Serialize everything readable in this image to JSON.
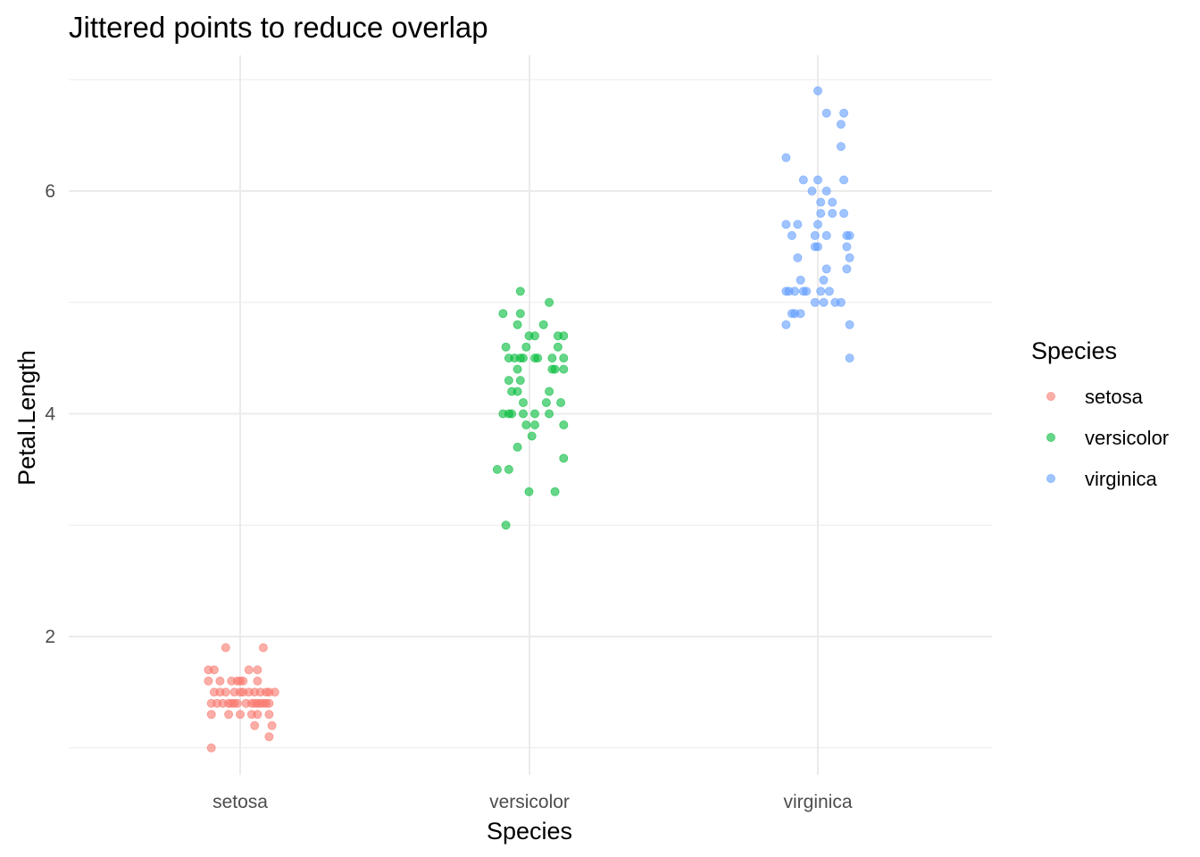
{
  "chart_data": {
    "type": "scatter",
    "title": "Jittered points to reduce overlap",
    "xlabel": "Species",
    "ylabel": "Petal.Length",
    "categories": [
      "setosa",
      "versicolor",
      "virginica"
    ],
    "ylim": [
      0.9,
      7.0
    ],
    "y_ticks": [
      2,
      4,
      6
    ],
    "y_minor_ticks": [
      1,
      3,
      5,
      7
    ],
    "grid": true,
    "point_alpha": 0.6,
    "legend": {
      "title": "Species",
      "placement": "right",
      "entries": [
        "setosa",
        "versicolor",
        "virginica"
      ]
    },
    "colors": {
      "setosa": "#F8766D",
      "versicolor": "#00BA38",
      "virginica": "#619CFF"
    },
    "series": [
      {
        "name": "setosa",
        "points": [
          [
            0.95,
            1.9
          ],
          [
            1.08,
            1.9
          ],
          [
            0.89,
            1.7
          ],
          [
            0.91,
            1.7
          ],
          [
            1.03,
            1.7
          ],
          [
            1.06,
            1.7
          ],
          [
            0.89,
            1.6
          ],
          [
            0.93,
            1.6
          ],
          [
            0.97,
            1.6
          ],
          [
            0.99,
            1.6
          ],
          [
            1.0,
            1.6
          ],
          [
            1.06,
            1.6
          ],
          [
            0.91,
            1.5
          ],
          [
            0.95,
            1.5
          ],
          [
            0.98,
            1.5
          ],
          [
            1.01,
            1.5
          ],
          [
            1.05,
            1.5
          ],
          [
            1.09,
            1.5
          ],
          [
            1.1,
            1.5
          ],
          [
            1.12,
            1.5
          ],
          [
            0.92,
            1.4
          ],
          [
            0.94,
            1.4
          ],
          [
            0.96,
            1.4
          ],
          [
            0.99,
            1.4
          ],
          [
            1.02,
            1.4
          ],
          [
            1.05,
            1.4
          ],
          [
            1.07,
            1.4
          ],
          [
            1.09,
            1.4
          ],
          [
            0.9,
            1.4
          ],
          [
            0.98,
            1.4
          ],
          [
            1.04,
            1.4
          ],
          [
            1.08,
            1.4
          ],
          [
            1.1,
            1.4
          ],
          [
            1.06,
            1.4
          ],
          [
            0.93,
            1.5
          ],
          [
            1.0,
            1.5
          ],
          [
            1.03,
            1.5
          ],
          [
            1.07,
            1.5
          ],
          [
            0.9,
            1.3
          ],
          [
            0.96,
            1.3
          ],
          [
            1.0,
            1.3
          ],
          [
            1.04,
            1.3
          ],
          [
            1.06,
            1.3
          ],
          [
            1.1,
            1.3
          ],
          [
            1.05,
            1.2
          ],
          [
            1.11,
            1.2
          ],
          [
            1.1,
            1.1
          ],
          [
            0.9,
            1.0
          ],
          [
            0.97,
            1.4
          ],
          [
            1.01,
            1.6
          ]
        ]
      },
      {
        "name": "versicolor",
        "points": [
          [
            1.97,
            5.1
          ],
          [
            2.07,
            5.0
          ],
          [
            1.91,
            4.9
          ],
          [
            1.97,
            4.9
          ],
          [
            1.96,
            4.8
          ],
          [
            2.05,
            4.8
          ],
          [
            2.0,
            4.7
          ],
          [
            2.02,
            4.7
          ],
          [
            2.1,
            4.7
          ],
          [
            2.12,
            4.7
          ],
          [
            1.92,
            4.6
          ],
          [
            1.99,
            4.6
          ],
          [
            1.93,
            4.5
          ],
          [
            1.95,
            4.5
          ],
          [
            1.97,
            4.5
          ],
          [
            1.98,
            4.5
          ],
          [
            2.02,
            4.5
          ],
          [
            2.03,
            4.5
          ],
          [
            2.08,
            4.5
          ],
          [
            2.12,
            4.5
          ],
          [
            2.12,
            4.4
          ],
          [
            2.09,
            4.4
          ],
          [
            1.96,
            4.4
          ],
          [
            1.93,
            4.3
          ],
          [
            1.97,
            4.3
          ],
          [
            1.94,
            4.2
          ],
          [
            1.96,
            4.2
          ],
          [
            2.07,
            4.2
          ],
          [
            1.98,
            4.1
          ],
          [
            2.06,
            4.1
          ],
          [
            2.11,
            4.1
          ],
          [
            2.02,
            4.0
          ],
          [
            1.91,
            4.0
          ],
          [
            1.93,
            4.0
          ],
          [
            1.94,
            4.0
          ],
          [
            2.07,
            4.0
          ],
          [
            1.99,
            3.9
          ],
          [
            2.02,
            3.9
          ],
          [
            2.12,
            3.9
          ],
          [
            2.01,
            3.8
          ],
          [
            1.96,
            3.7
          ],
          [
            2.12,
            3.6
          ],
          [
            1.93,
            3.5
          ],
          [
            1.89,
            3.5
          ],
          [
            2.0,
            3.3
          ],
          [
            2.09,
            3.3
          ],
          [
            1.92,
            3.0
          ],
          [
            2.1,
            4.6
          ],
          [
            2.08,
            4.4
          ],
          [
            1.98,
            4.0
          ]
        ]
      },
      {
        "name": "virginica",
        "points": [
          [
            3.0,
            6.9
          ],
          [
            3.03,
            6.7
          ],
          [
            3.09,
            6.7
          ],
          [
            3.08,
            6.6
          ],
          [
            3.08,
            6.4
          ],
          [
            2.89,
            6.3
          ],
          [
            2.95,
            6.1
          ],
          [
            3.0,
            6.1
          ],
          [
            3.09,
            6.1
          ],
          [
            2.98,
            6.0
          ],
          [
            3.03,
            6.0
          ],
          [
            3.05,
            5.9
          ],
          [
            3.01,
            5.9
          ],
          [
            3.01,
            5.8
          ],
          [
            3.09,
            5.8
          ],
          [
            3.05,
            5.8
          ],
          [
            2.89,
            5.7
          ],
          [
            2.93,
            5.7
          ],
          [
            3.0,
            5.7
          ],
          [
            2.91,
            5.6
          ],
          [
            2.99,
            5.6
          ],
          [
            3.03,
            5.6
          ],
          [
            3.1,
            5.6
          ],
          [
            3.11,
            5.6
          ],
          [
            2.99,
            5.5
          ],
          [
            3.0,
            5.5
          ],
          [
            3.1,
            5.5
          ],
          [
            2.93,
            5.4
          ],
          [
            3.11,
            5.4
          ],
          [
            3.03,
            5.3
          ],
          [
            3.1,
            5.3
          ],
          [
            2.94,
            5.2
          ],
          [
            3.02,
            5.2
          ],
          [
            2.89,
            5.1
          ],
          [
            2.9,
            5.1
          ],
          [
            2.92,
            5.1
          ],
          [
            2.95,
            5.1
          ],
          [
            3.04,
            5.1
          ],
          [
            3.01,
            5.1
          ],
          [
            3.02,
            5.0
          ],
          [
            3.08,
            5.0
          ],
          [
            3.06,
            5.0
          ],
          [
            2.99,
            5.0
          ],
          [
            2.91,
            4.9
          ],
          [
            2.92,
            4.9
          ],
          [
            2.94,
            4.9
          ],
          [
            2.89,
            4.8
          ],
          [
            3.11,
            4.8
          ],
          [
            3.11,
            4.5
          ],
          [
            2.96,
            5.1
          ]
        ]
      }
    ]
  }
}
